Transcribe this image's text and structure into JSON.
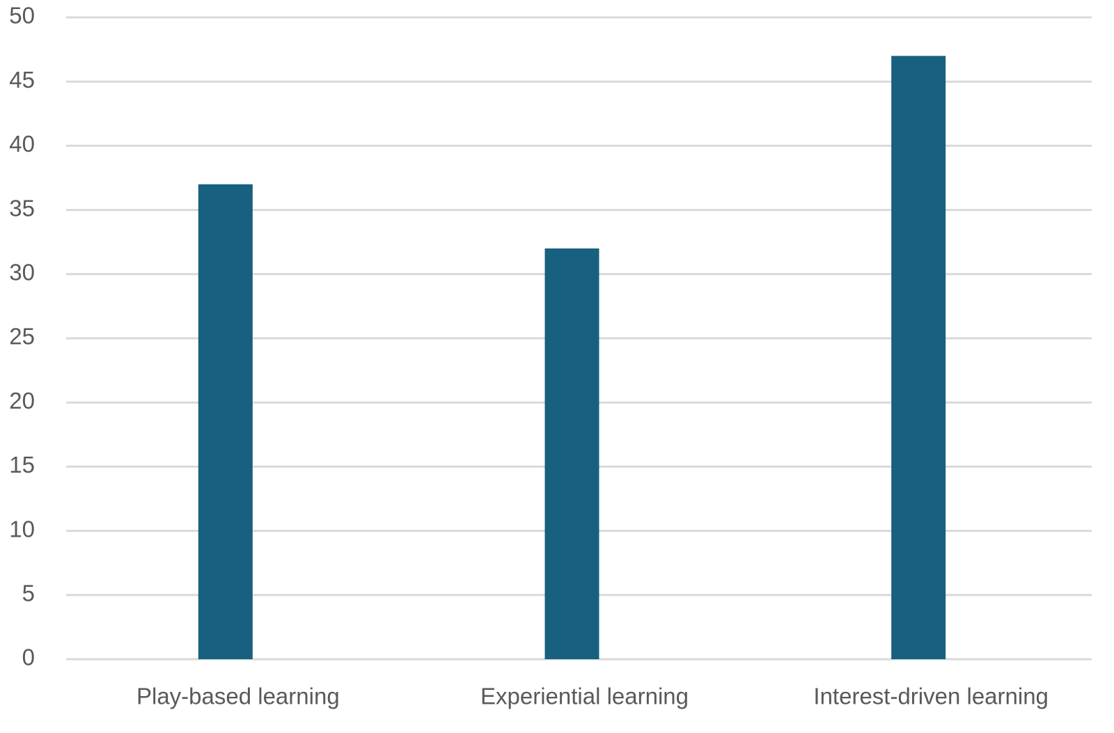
{
  "chart_data": {
    "type": "bar",
    "categories": [
      "Play-based learning",
      "Experiential learning",
      "Interest-driven learning"
    ],
    "values": [
      37,
      32,
      47
    ],
    "color": "#17607f",
    "ylim": [
      0,
      50
    ],
    "yticks": [
      0,
      5,
      10,
      15,
      20,
      25,
      30,
      35,
      40,
      45,
      50
    ],
    "grid": true
  }
}
